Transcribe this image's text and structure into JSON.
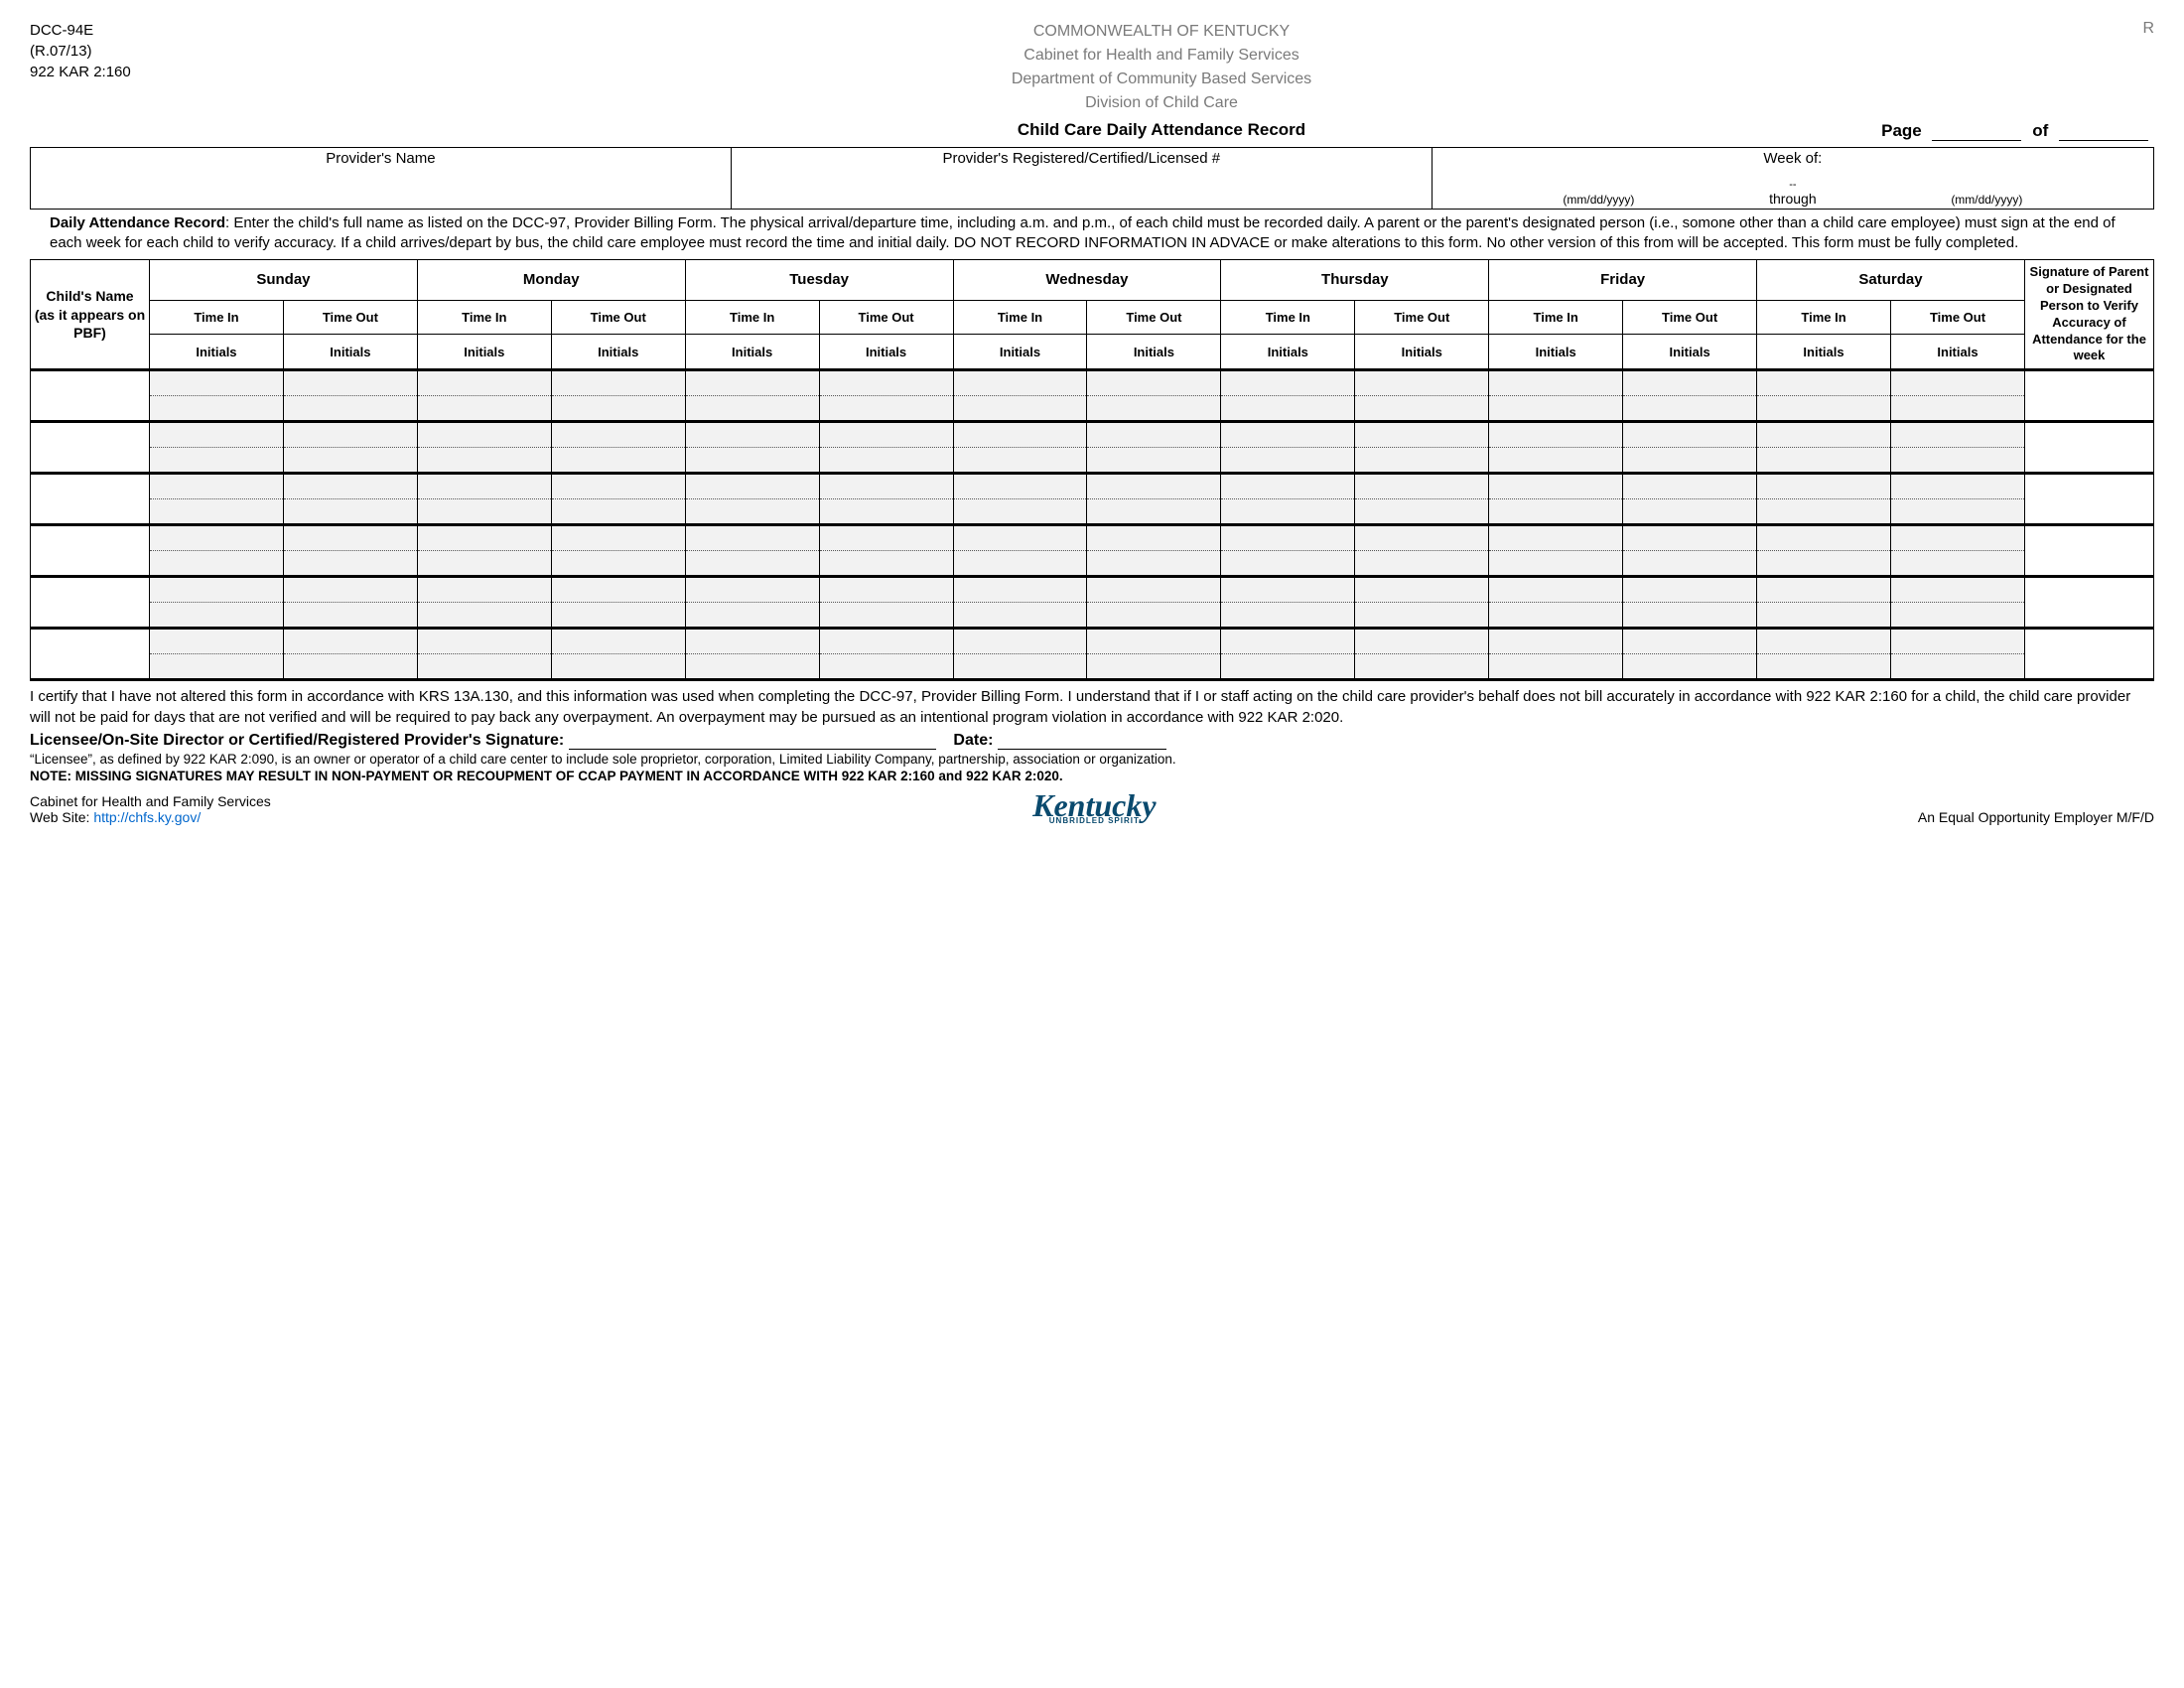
{
  "header": {
    "form_code": "DCC-94E",
    "revision": "(R.07/13)",
    "kar": "922 KAR  2:160",
    "r_mark": "R",
    "line1": "COMMONWEALTH OF KENTUCKY",
    "line2": "Cabinet for Health and Family Services",
    "line3": "Department of Community Based Services",
    "line4": "Division of Child Care",
    "title": "Child Care Daily Attendance Record",
    "page_label": "Page",
    "of_label": "of"
  },
  "provider_box": {
    "name_label": "Provider's Name",
    "number_label": "Provider's Registered/Certified/Licensed #",
    "week_label": "Week of:",
    "date_fmt": "(mm/dd/yyyy)",
    "through": "through",
    "dash": "--"
  },
  "instructions": {
    "lead": "Daily Attendance Record",
    "body": ":  Enter the child's full name as listed on the DCC-97, Provider Billing Form.  The physical arrival/departure time, including a.m. and p.m., of each child must be recorded daily.  A parent or the parent's designated person (i.e., somone other than a child care employee) must sign at the end of each week for each child to verify accuracy.  If a child arrives/depart by bus, the child care employee must record the time and initial daily.  DO NOT RECORD INFORMATION IN ADVACE or make alterations to this form.  No other version of this from will be accepted.  This form must be fully completed."
  },
  "table": {
    "childname": "Child's Name\n(as it appears on PBF)",
    "days": [
      "Sunday",
      "Monday",
      "Tuesday",
      "Wednesday",
      "Thursday",
      "Friday",
      "Saturday"
    ],
    "time_in": "Time In",
    "time_out": "Time Out",
    "initials": "Initials",
    "sig_header": "Signature of Parent or Designated Person to Verify Accuracy of Attendance for the week",
    "row_count": 6
  },
  "certify": "I certify that I have not altered this form in accordance with KRS 13A.130, and this information was used when completing the DCC-97, Provider Billing Form.  I understand that if I or staff acting on the child care provider's behalf does not bill accurately in accordance with 922 KAR 2:160 for a child, the child care provider will not be paid for days that are not verified and will be required to pay back any overpayment.  An overpayment may be pursued as an intentional program violation in accordance with 922        KAR 2:020.",
  "sig_line": {
    "label": "Licensee/On-Site Director or Certified/Registered Provider's Signature:",
    "date_label": "Date:"
  },
  "licensee_def": "“Licensee”, as defined by 922 KAR 2:090, is an owner or operator of a child care center to include sole proprietor, corporation, Limited Liability Company, partnership, association or organization.",
  "bold_note": "NOTE: MISSING SIGNATURES MAY RESULT IN NON-PAYMENT OR RECOUPMENT OF CCAP PAYMENT IN ACCORDANCE WITH 922 KAR 2:160 and 922 KAR 2:020.",
  "footer": {
    "cabinet": "Cabinet for Health and Family Services",
    "website_label": "Web Site: ",
    "website_url": "http://chfs.ky.gov/",
    "logo_text": "Kentucky",
    "logo_sub": "UNBRIDLED SPIRIT",
    "eoe": "An Equal Opportunity Employer M/F/D"
  },
  "colors": {
    "muted": "#7a7a7a",
    "link": "#0066cc",
    "logo": "#0a4a6e",
    "fill": "#f2f2f2"
  }
}
